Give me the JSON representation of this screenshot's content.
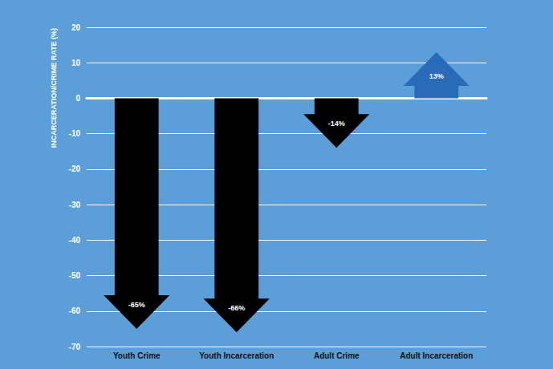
{
  "chart_data": {
    "type": "bar",
    "categories": [
      "Youth Crime",
      "Youth Incarceration",
      "Adult Crime",
      "Adult Incarceration"
    ],
    "values": [
      -65,
      -66,
      -14,
      13
    ],
    "value_labels": [
      "-65%",
      "-66%",
      "-14%",
      "13%"
    ],
    "colors": [
      "#000000",
      "#000000",
      "#000000",
      "#2a6bb8"
    ],
    "ylabel": "INCARCERATION/CRIME RATE (%)",
    "ylim": [
      -70,
      20
    ],
    "yticks": [
      -70,
      -60,
      -50,
      -40,
      -30,
      -20,
      -10,
      0,
      10,
      20
    ],
    "grid": true,
    "data_labels": true,
    "marker": "arrow"
  }
}
